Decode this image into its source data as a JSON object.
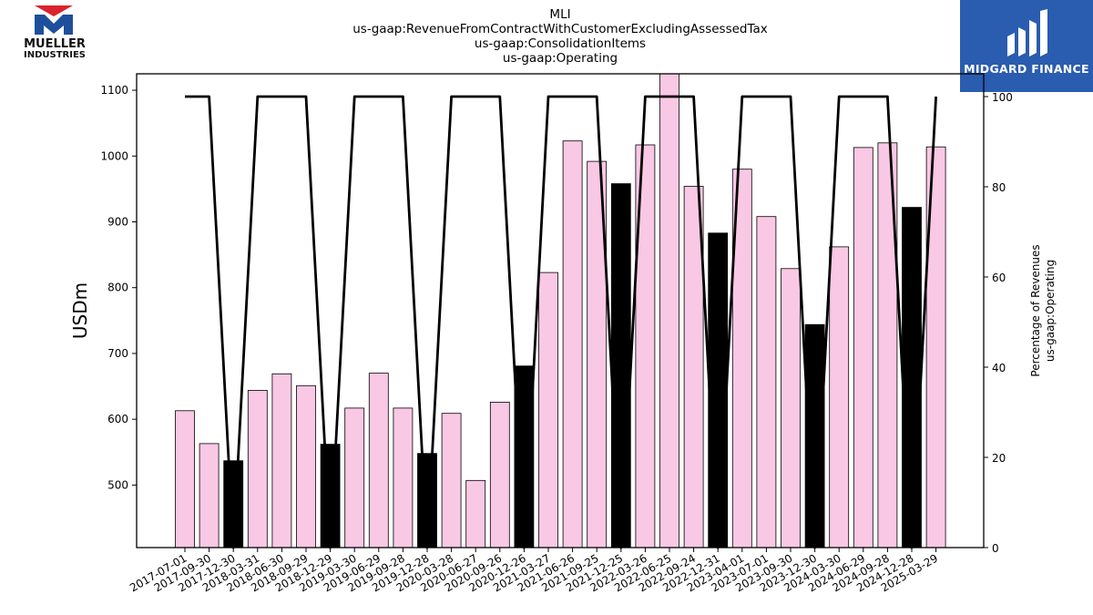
{
  "header": {
    "title_lines": [
      "MLI",
      "us-gaap:RevenueFromContractWithCustomerExcludingAssessedTax",
      "us-gaap:ConsolidationItems",
      "us-gaap:Operating"
    ]
  },
  "logos": {
    "left": {
      "line1": "MUELLER",
      "line2": "INDUSTRIES",
      "icon": "mueller-m-icon",
      "colors": [
        "#d9232e",
        "#1d4f9c"
      ]
    },
    "right": {
      "text": "MIDGARD FINANCE",
      "icon": "midgard-m-icon",
      "background": "#2a5caf"
    }
  },
  "chart_data": {
    "type": "bar",
    "title": "",
    "ylabel": "USDm",
    "y2label_lines": [
      "Percentage of Revenues",
      "us-gaap:Operating"
    ],
    "ylim": [
      405,
      1125
    ],
    "y2lim": [
      0,
      100
    ],
    "yticks": [
      500,
      600,
      700,
      800,
      900,
      1000,
      1100
    ],
    "y2ticks": [
      0,
      20,
      40,
      60,
      80,
      100
    ],
    "grid": false,
    "colors": {
      "bar_pink": "#f9c8e4",
      "bar_dark": "#000000",
      "line": "#000000"
    },
    "categories": [
      "2017-07-01",
      "2017-09-30",
      "2017-12-30",
      "2018-03-31",
      "2018-06-30",
      "2018-09-29",
      "2018-12-29",
      "2019-03-30",
      "2019-06-29",
      "2019-09-28",
      "2019-12-28",
      "2020-03-28",
      "2020-06-27",
      "2020-09-26",
      "2020-12-26",
      "2021-03-27",
      "2021-06-26",
      "2021-09-25",
      "2021-12-25",
      "2022-03-26",
      "2022-06-25",
      "2022-09-24",
      "2022-12-31",
      "2023-04-01",
      "2023-07-01",
      "2023-09-30",
      "2023-12-30",
      "2024-03-30",
      "2024-06-29",
      "2024-09-28",
      "2024-12-28",
      "2025-03-29"
    ],
    "series": [
      {
        "kind": "bar",
        "values": [
          613,
          563,
          537,
          644,
          669,
          651,
          562,
          617,
          670,
          617,
          548,
          609,
          507,
          626,
          681,
          823,
          1023,
          992,
          958,
          1017,
          1140,
          954,
          883,
          980,
          908,
          829,
          744,
          862,
          1013,
          1020,
          922,
          1014
        ],
        "dark": [
          false,
          false,
          true,
          false,
          false,
          false,
          true,
          false,
          false,
          false,
          true,
          false,
          false,
          false,
          true,
          false,
          false,
          false,
          true,
          false,
          false,
          false,
          true,
          false,
          false,
          false,
          true,
          false,
          false,
          false,
          true,
          false
        ]
      },
      {
        "kind": "line",
        "axis": "right",
        "values": [
          100,
          100,
          0,
          100,
          100,
          100,
          0,
          100,
          100,
          100,
          0,
          100,
          100,
          100,
          0,
          100,
          100,
          100,
          0,
          100,
          100,
          100,
          0,
          100,
          100,
          100,
          0,
          100,
          100,
          100,
          0,
          100
        ]
      }
    ]
  }
}
